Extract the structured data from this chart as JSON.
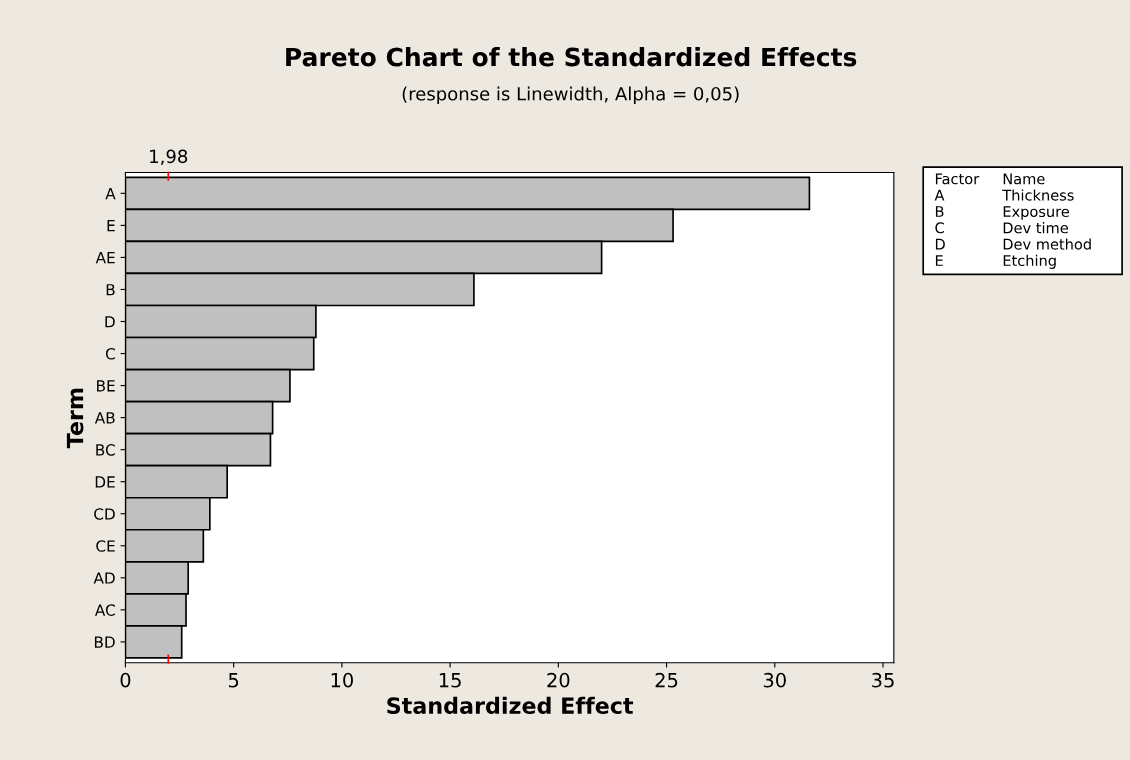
{
  "chart_data": {
    "type": "bar",
    "orientation": "horizontal",
    "title": "Pareto Chart of the Standardized Effects",
    "subtitle": "(response is Linewidth, Alpha = 0,05)",
    "xlabel": "Standardized Effect",
    "ylabel": "Term",
    "categories": [
      "A",
      "E",
      "AE",
      "B",
      "D",
      "C",
      "BE",
      "AB",
      "BC",
      "DE",
      "CD",
      "CE",
      "AD",
      "AC",
      "BD"
    ],
    "values": [
      31.6,
      25.3,
      22.0,
      16.1,
      8.8,
      8.7,
      7.6,
      6.8,
      6.7,
      4.7,
      3.9,
      3.6,
      2.9,
      2.8,
      2.6
    ],
    "color": "#c0c0c0",
    "xlim": [
      0,
      35.5
    ],
    "xticks": [
      0,
      5,
      10,
      15,
      20,
      25,
      30,
      35
    ],
    "ref_lines": [
      {
        "axis": "x",
        "value": 1.98,
        "label": "1,98",
        "color": "#ff0000"
      }
    ],
    "annotations": [
      "Factor",
      "Name",
      "A",
      "Thickness",
      "B",
      "Exposure",
      "C",
      "Dev time",
      "D",
      "Dev method",
      "E",
      "Etching"
    ],
    "grid": false
  }
}
